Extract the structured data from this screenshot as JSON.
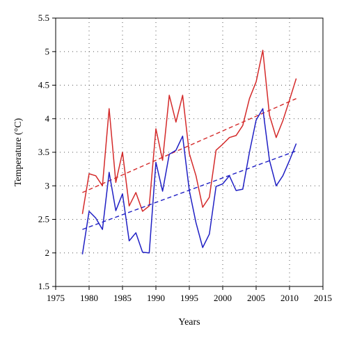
{
  "chart_data": {
    "type": "line",
    "title": "",
    "xlabel": "Years",
    "ylabel": "Temperature (°C)",
    "xlim": [
      1975,
      2015
    ],
    "ylim": [
      1.5,
      5.5
    ],
    "x_ticks": [
      1975,
      1980,
      1985,
      1990,
      1995,
      2000,
      2005,
      2010,
      2015
    ],
    "y_ticks": [
      1.5,
      2,
      2.5,
      3,
      3.5,
      4,
      4.5,
      5,
      5.5
    ],
    "x_tick_labels": [
      "1975",
      "1980",
      "1985",
      "1990",
      "1995",
      "2000",
      "2005",
      "2010",
      "2015"
    ],
    "y_tick_labels": [
      "1.5",
      "2",
      "2.5",
      "3",
      "3.5",
      "4",
      "4.5",
      "5",
      "5.5"
    ],
    "grid": "dotted",
    "x": [
      1979,
      1980,
      1981,
      1982,
      1983,
      1984,
      1985,
      1986,
      1987,
      1988,
      1989,
      1990,
      1991,
      1992,
      1993,
      1994,
      1995,
      1996,
      1997,
      1998,
      1999,
      2000,
      2001,
      2002,
      2003,
      2004,
      2005,
      2006,
      2007,
      2008,
      2009,
      2010,
      2011
    ],
    "series": [
      {
        "color": "#d42a2a",
        "values": [
          2.58,
          3.18,
          3.15,
          3.0,
          4.15,
          3.05,
          3.5,
          2.7,
          2.9,
          2.62,
          2.7,
          3.85,
          3.38,
          4.35,
          3.95,
          4.35,
          3.48,
          3.15,
          2.68,
          2.83,
          3.53,
          3.62,
          3.72,
          3.75,
          3.9,
          4.3,
          4.55,
          5.02,
          4.05,
          3.72,
          3.97,
          4.28,
          4.6
        ],
        "trend": [
          2.9,
          4.3
        ]
      },
      {
        "color": "#1f1fc4",
        "values": [
          1.98,
          2.62,
          2.52,
          2.35,
          3.2,
          2.63,
          2.88,
          2.18,
          2.3,
          2.01,
          2.0,
          3.35,
          2.92,
          3.47,
          3.53,
          3.74,
          2.93,
          2.45,
          2.08,
          2.28,
          2.99,
          3.03,
          3.15,
          2.93,
          2.95,
          3.5,
          3.98,
          4.15,
          3.38,
          3.0,
          3.15,
          3.38,
          3.63
        ],
        "trend": [
          2.35,
          3.52
        ]
      }
    ]
  }
}
